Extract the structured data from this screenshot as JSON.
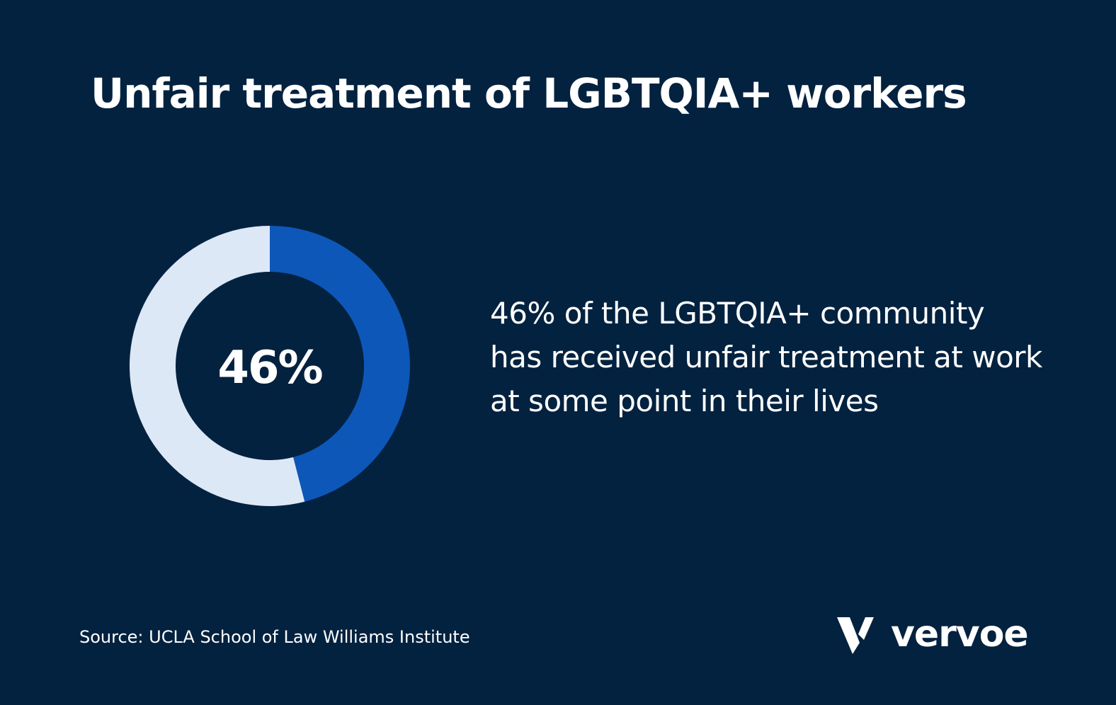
{
  "chart_data": {
    "type": "pie",
    "donut": true,
    "title": "Unfair treatment of LGBTQIA+ workers",
    "values": [
      46,
      54
    ],
    "value_labels": [
      "46%",
      null
    ],
    "colors": [
      "#0d57b9",
      "#dde8f7"
    ],
    "description": "46% of the LGBTQIA+ community has received unfair treatment at work at some point in their lives",
    "source": "Source: UCLA School of Law Williams Institute",
    "logo": "vervoe"
  }
}
